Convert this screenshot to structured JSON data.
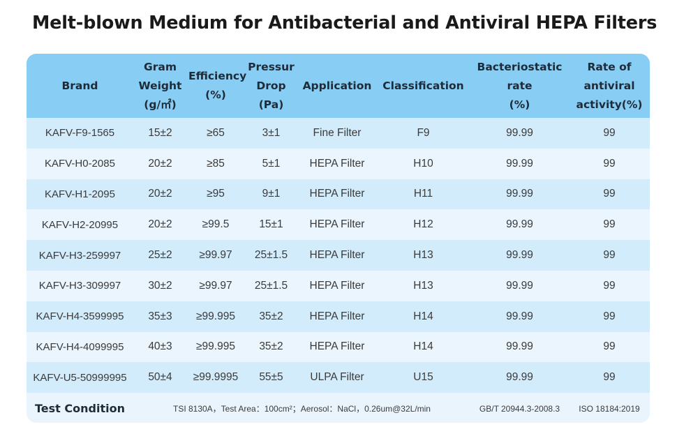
{
  "title": "Melt-blown Medium for Antibacterial and Antiviral HEPA Filters",
  "table": {
    "headers": [
      "Brand",
      "Gram\nWeight\n(g/㎡)",
      "Efficiency\n(%)",
      "Pressur\nDrop\n(Pa)",
      "Application",
      "Classification",
      "Bacteriostatic\nrate\n(%)",
      "Rate of\nantiviral\nactivity(%)"
    ],
    "rows": [
      [
        "KAFV-F9-1565",
        "15±2",
        "≥65",
        "3±1",
        "Fine Filter",
        "F9",
        "99.99",
        "99"
      ],
      [
        "KAFV-H0-2085",
        "20±2",
        "≥85",
        "5±1",
        "HEPA Filter",
        "H10",
        "99.99",
        "99"
      ],
      [
        "KAFV-H1-2095",
        "20±2",
        "≥95",
        "9±1",
        "HEPA Filter",
        "H11",
        "99.99",
        "99"
      ],
      [
        "KAFV-H2-20995",
        "20±2",
        "≥99.5",
        "15±1",
        "HEPA Filter",
        "H12",
        "99.99",
        "99"
      ],
      [
        "KAFV-H3-259997",
        "25±2",
        "≥99.97",
        "25±1.5",
        "HEPA Filter",
        "H13",
        "99.99",
        "99"
      ],
      [
        "KAFV-H3-309997",
        "30±2",
        "≥99.97",
        "25±1.5",
        "HEPA Filter",
        "H13",
        "99.99",
        "99"
      ],
      [
        "KAFV-H4-3599995",
        "35±3",
        "≥99.995",
        "35±2",
        "HEPA Filter",
        "H14",
        "99.99",
        "99"
      ],
      [
        "KAFV-H4-4099995",
        "40±3",
        "≥99.995",
        "35±2",
        "HEPA Filter",
        "H14",
        "99.99",
        "99"
      ],
      [
        "KAFV-U5-50999995",
        "50±4",
        "≥99.9995",
        "55±5",
        "ULPA Filter",
        "U15",
        "99.99",
        "99"
      ]
    ],
    "footer": {
      "label": "Test Condition",
      "condition": "TSI 8130A，Test Area：100cm²；Aerosol：NaCl，0.26um@32L/min",
      "bacteriostatic_standard": "GB/T 20944.3-2008.3",
      "antiviral_standard": "ISO 18184:2019"
    }
  },
  "colors": {
    "header_bg": "#87cdf4",
    "row_even_bg": "#d3ecfb",
    "row_odd_bg": "#eaf5fd"
  }
}
